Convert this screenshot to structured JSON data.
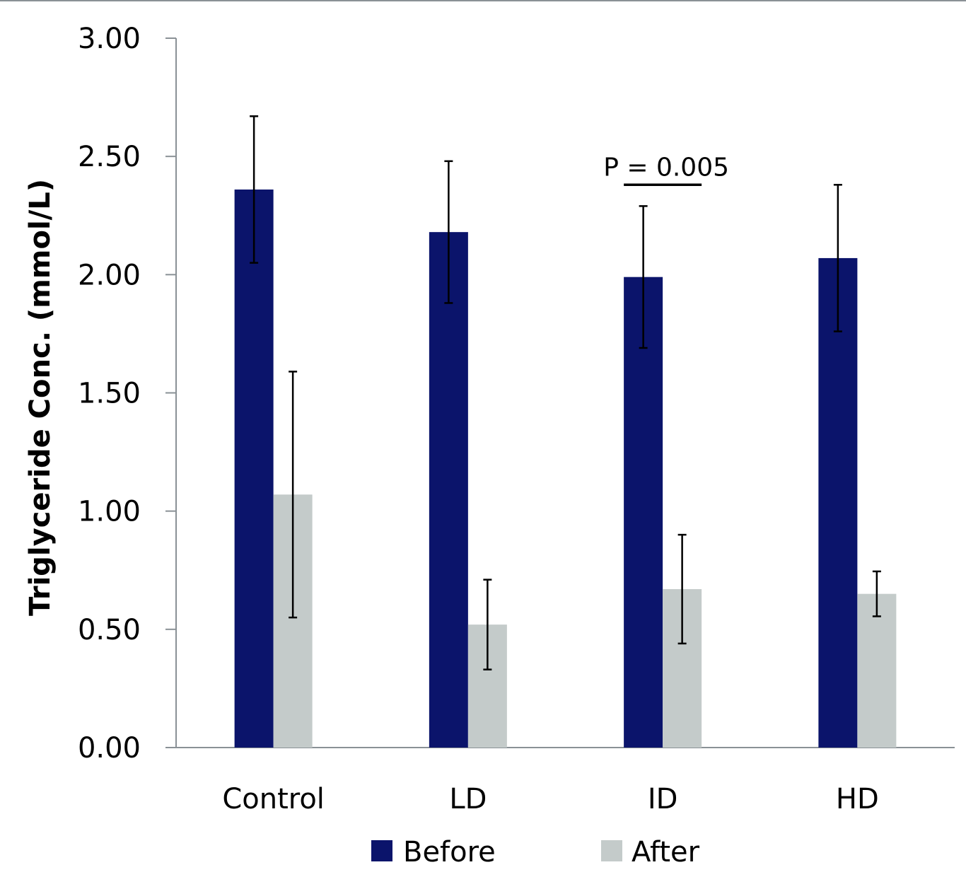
{
  "chart_data": {
    "type": "bar",
    "title": "",
    "xlabel": "",
    "ylabel": "Triglyceride Conc. (mmol/L)",
    "ylim": [
      0,
      3
    ],
    "ytick_step": 0.5,
    "ytick_labels": [
      "0.00",
      "0.50",
      "1.00",
      "1.50",
      "2.00",
      "2.50",
      "3.00"
    ],
    "categories": [
      "Control",
      "LD",
      "ID",
      "HD"
    ],
    "series": [
      {
        "name": "Before",
        "color": "#0b146b",
        "values": [
          2.36,
          2.18,
          1.99,
          2.07
        ],
        "errors": [
          0.31,
          0.3,
          0.3,
          0.31
        ]
      },
      {
        "name": "After",
        "color": "#c4cbca",
        "values": [
          1.07,
          0.52,
          0.67,
          0.65
        ],
        "errors": [
          0.52,
          0.19,
          0.23,
          0.095
        ]
      }
    ],
    "annotations": [
      {
        "text": "P = 0.005",
        "category": "ID",
        "y": 2.38
      }
    ],
    "legend": {
      "position": "bottom-center",
      "entries": [
        "Before",
        "After"
      ]
    },
    "grid": false
  }
}
